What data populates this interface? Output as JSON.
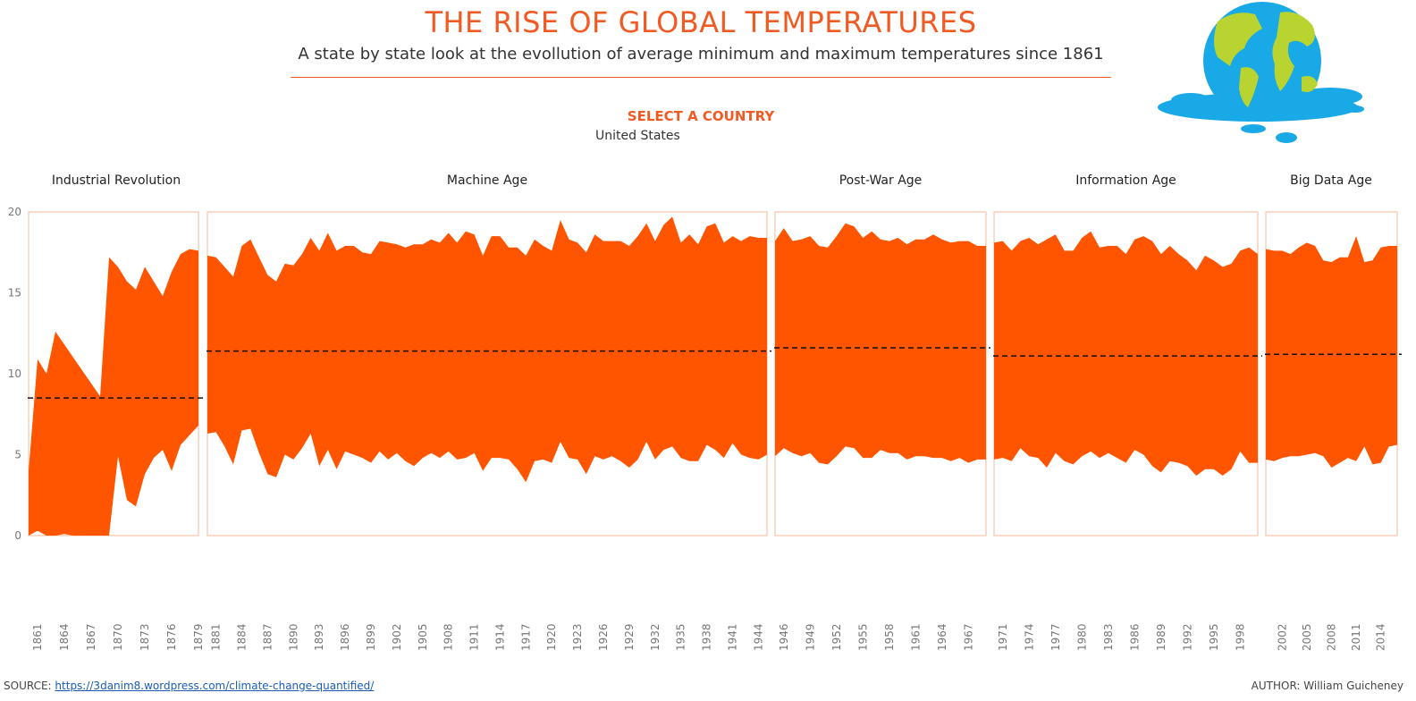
{
  "header": {
    "title": "THE RISE OF GLOBAL TEMPERATURES",
    "subtitle": "A state by state look at the evollution of average minimum and maximum temperatures since 1861",
    "select_label": "SELECT A COUNTRY",
    "select_value": "United States"
  },
  "footer": {
    "source_label": "SOURCE:",
    "source_link": "https://3danim8.wordpress.com/climate-change-quantified/",
    "author": "AUTHOR: William Guicheney"
  },
  "colors": {
    "accent": "#f15a22",
    "fill": "#ff5500",
    "panel_border": "#f7b89a",
    "ocean": "#19a9e6",
    "land": "#b9d331"
  },
  "chart_data": {
    "type": "area",
    "title": "",
    "xlabel": "",
    "ylabel": "",
    "ylim": [
      0,
      20
    ],
    "y_ticks": [
      0,
      5,
      10,
      15,
      20
    ],
    "grid": false,
    "panels": [
      {
        "name": "Industrial Revolution",
        "x_ticks": [
          "1861",
          "1864",
          "1867",
          "1870",
          "1873",
          "1876",
          "1879"
        ],
        "years": [
          1860,
          1861,
          1862,
          1863,
          1864,
          1865,
          1866,
          1867,
          1868,
          1869,
          1870,
          1871,
          1872,
          1873,
          1874,
          1875,
          1876,
          1877,
          1878,
          1879
        ],
        "max": [
          4,
          10.9,
          10,
          12.6,
          11.8,
          11,
          10.2,
          9.4,
          8.6,
          17.2,
          16.6,
          15.7,
          15.2,
          16.6,
          15.7,
          14.8,
          16.3,
          17.4,
          17.7,
          17.6
        ],
        "min": [
          0,
          0.3,
          0,
          0,
          0.1,
          0,
          0,
          0,
          0,
          0,
          4.9,
          2.2,
          1.8,
          3.8,
          4.8,
          5.3,
          4,
          5.6,
          6.2,
          6.8
        ],
        "average": 8.5
      },
      {
        "name": "Machine Age",
        "x_ticks": [
          "1881",
          "1884",
          "1887",
          "1890",
          "1893",
          "1896",
          "1899",
          "1902",
          "1905",
          "1908",
          "1911",
          "1914",
          "1917",
          "1920",
          "1923",
          "1926",
          "1929",
          "1932",
          "1935",
          "1938",
          "1941",
          "1944"
        ],
        "years": [
          1880,
          1881,
          1882,
          1883,
          1884,
          1885,
          1886,
          1887,
          1888,
          1889,
          1890,
          1891,
          1892,
          1893,
          1894,
          1895,
          1896,
          1897,
          1898,
          1899,
          1900,
          1901,
          1902,
          1903,
          1904,
          1905,
          1906,
          1907,
          1908,
          1909,
          1910,
          1911,
          1912,
          1913,
          1914,
          1915,
          1916,
          1917,
          1918,
          1919,
          1920,
          1921,
          1922,
          1923,
          1924,
          1925,
          1926,
          1927,
          1928,
          1929,
          1930,
          1931,
          1932,
          1933,
          1934,
          1935,
          1936,
          1937,
          1938,
          1939,
          1940,
          1941,
          1942,
          1943,
          1944,
          1945
        ],
        "max": [
          17.3,
          17.2,
          16.6,
          16,
          17.9,
          18.3,
          17.2,
          16.1,
          15.7,
          16.8,
          16.7,
          17.4,
          18.4,
          17.6,
          18.7,
          17.6,
          17.9,
          17.9,
          17.5,
          17.4,
          18.2,
          18.1,
          18,
          17.8,
          18,
          18,
          18.3,
          18.1,
          18.7,
          18.1,
          18.8,
          18.6,
          17.3,
          18.5,
          18.5,
          17.8,
          17.8,
          17.3,
          18.3,
          17.9,
          17.6,
          19.5,
          18.3,
          18.1,
          17.5,
          18.6,
          18.2,
          18.2,
          18.2,
          17.9,
          18.5,
          19.3,
          18.2,
          19.2,
          19.7,
          18.1,
          18.6,
          18,
          19.1,
          19.3,
          18.1,
          18.5,
          18.2,
          18.5,
          18.4,
          18.4
        ],
        "min": [
          6.3,
          6.4,
          5.5,
          4.4,
          6.5,
          6.6,
          5.1,
          3.8,
          3.6,
          5,
          4.7,
          5.4,
          6.3,
          4.3,
          5.3,
          4.1,
          5.2,
          5,
          4.8,
          4.5,
          5.2,
          4.7,
          5.1,
          4.6,
          4.3,
          4.8,
          5.1,
          4.8,
          5.2,
          4.7,
          4.8,
          5.1,
          4,
          4.8,
          4.8,
          4.7,
          4.1,
          3.3,
          4.6,
          4.7,
          4.5,
          5.8,
          4.8,
          4.7,
          3.8,
          4.9,
          4.7,
          4.9,
          4.6,
          4.2,
          4.7,
          5.8,
          4.7,
          5.3,
          5.5,
          4.8,
          4.6,
          4.6,
          5.6,
          5.3,
          4.8,
          5.7,
          5,
          4.8,
          4.7,
          5
        ],
        "average": 11.4
      },
      {
        "name": "Post-War Age",
        "x_ticks": [
          "1946",
          "1949",
          "1952",
          "1955",
          "1958",
          "1961",
          "1964",
          "1967"
        ],
        "years": [
          1945,
          1946,
          1947,
          1948,
          1949,
          1950,
          1951,
          1952,
          1953,
          1954,
          1955,
          1956,
          1957,
          1958,
          1959,
          1960,
          1961,
          1962,
          1963,
          1964,
          1965,
          1966,
          1967,
          1968,
          1969
        ],
        "max": [
          18.2,
          19,
          18.2,
          18.3,
          18.5,
          17.9,
          17.8,
          18.5,
          19.3,
          19.1,
          18.4,
          18.8,
          18.3,
          18.2,
          18.4,
          18,
          18.3,
          18.3,
          18.6,
          18.3,
          18.1,
          18.2,
          18.2,
          17.9,
          17.9
        ],
        "min": [
          4.9,
          5.4,
          5.1,
          4.9,
          5.1,
          4.5,
          4.4,
          4.9,
          5.5,
          5.4,
          4.8,
          4.8,
          5.3,
          5.1,
          5.1,
          4.7,
          4.9,
          4.9,
          4.8,
          4.8,
          4.6,
          4.8,
          4.5,
          4.7,
          4.7
        ],
        "average": 11.6
      },
      {
        "name": "Information Age",
        "x_ticks": [
          "1971",
          "1974",
          "1977",
          "1980",
          "1983",
          "1986",
          "1989",
          "1992",
          "1995",
          "1998"
        ],
        "years": [
          1970,
          1971,
          1972,
          1973,
          1974,
          1975,
          1976,
          1977,
          1978,
          1979,
          1980,
          1981,
          1982,
          1983,
          1984,
          1985,
          1986,
          1987,
          1988,
          1989,
          1990,
          1991,
          1992,
          1993,
          1994,
          1995,
          1996,
          1997,
          1998,
          1999,
          2000
        ],
        "max": [
          18.1,
          18.2,
          17.6,
          18.2,
          18.4,
          18,
          18.3,
          18.6,
          17.6,
          17.6,
          18.4,
          18.8,
          17.8,
          17.9,
          17.9,
          17.4,
          18.3,
          18.5,
          18.2,
          17.4,
          17.9,
          17.4,
          17,
          16.4,
          17.3,
          17,
          16.6,
          16.8,
          17.6,
          17.8,
          17.4
        ],
        "min": [
          4.7,
          4.8,
          4.6,
          5.4,
          4.9,
          4.8,
          4.2,
          5.1,
          4.6,
          4.4,
          4.9,
          5.2,
          4.8,
          5.1,
          4.8,
          4.5,
          5.3,
          5,
          4.3,
          3.9,
          4.6,
          4.5,
          4.3,
          3.7,
          4.1,
          4.1,
          3.7,
          4.1,
          5.2,
          4.5,
          4.5
        ],
        "average": 11.1
      },
      {
        "name": "Big Data Age",
        "x_ticks": [
          "2002",
          "2005",
          "2008",
          "2011",
          "2014"
        ],
        "years": [
          2000,
          2001,
          2002,
          2003,
          2004,
          2005,
          2006,
          2007,
          2008,
          2009,
          2010,
          2011,
          2012,
          2013,
          2014,
          2015,
          2016
        ],
        "max": [
          17.7,
          17.6,
          17.6,
          17.4,
          17.8,
          18.1,
          17.9,
          17,
          16.9,
          17.2,
          17.2,
          18.5,
          16.9,
          17,
          17.8,
          17.9,
          17.9
        ],
        "min": [
          4.7,
          4.6,
          4.8,
          4.9,
          4.9,
          5,
          5.1,
          4.9,
          4.2,
          4.5,
          4.8,
          4.6,
          5.5,
          4.4,
          4.5,
          5.5,
          5.6
        ],
        "average": 11.2
      }
    ]
  }
}
